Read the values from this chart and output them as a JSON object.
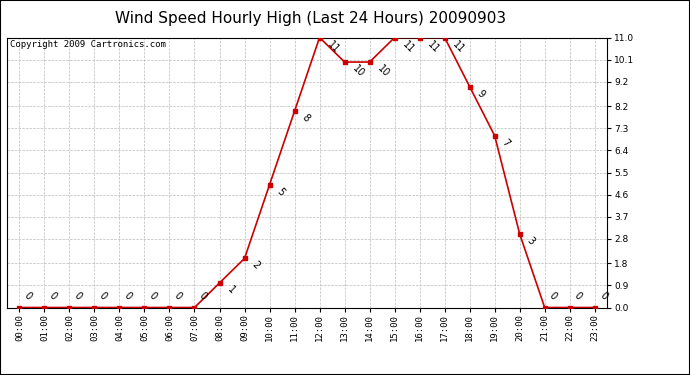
{
  "title": "Wind Speed Hourly High (Last 24 Hours) 20090903",
  "copyright_text": "Copyright 2009 Cartronics.com",
  "hours": [
    "00:00",
    "01:00",
    "02:00",
    "03:00",
    "04:00",
    "05:00",
    "06:00",
    "07:00",
    "08:00",
    "09:00",
    "10:00",
    "11:00",
    "12:00",
    "13:00",
    "14:00",
    "15:00",
    "16:00",
    "17:00",
    "18:00",
    "19:00",
    "20:00",
    "21:00",
    "22:00",
    "23:00"
  ],
  "values": [
    0,
    0,
    0,
    0,
    0,
    0,
    0,
    0,
    1,
    2,
    5,
    8,
    11,
    10,
    10,
    11,
    11,
    11,
    9,
    7,
    3,
    0,
    0,
    0
  ],
  "line_color": "#cc0000",
  "marker_color": "#cc0000",
  "bg_color": "#ffffff",
  "plot_bg_color": "#ffffff",
  "grid_color": "#bbbbbb",
  "ylim": [
    0.0,
    11.0
  ],
  "yticks": [
    0.0,
    0.9,
    1.8,
    2.8,
    3.7,
    4.6,
    5.5,
    6.4,
    7.3,
    8.2,
    9.2,
    10.1,
    11.0
  ],
  "title_fontsize": 11,
  "tick_fontsize": 6.5,
  "annotation_fontsize": 7,
  "copyright_fontsize": 6.5
}
